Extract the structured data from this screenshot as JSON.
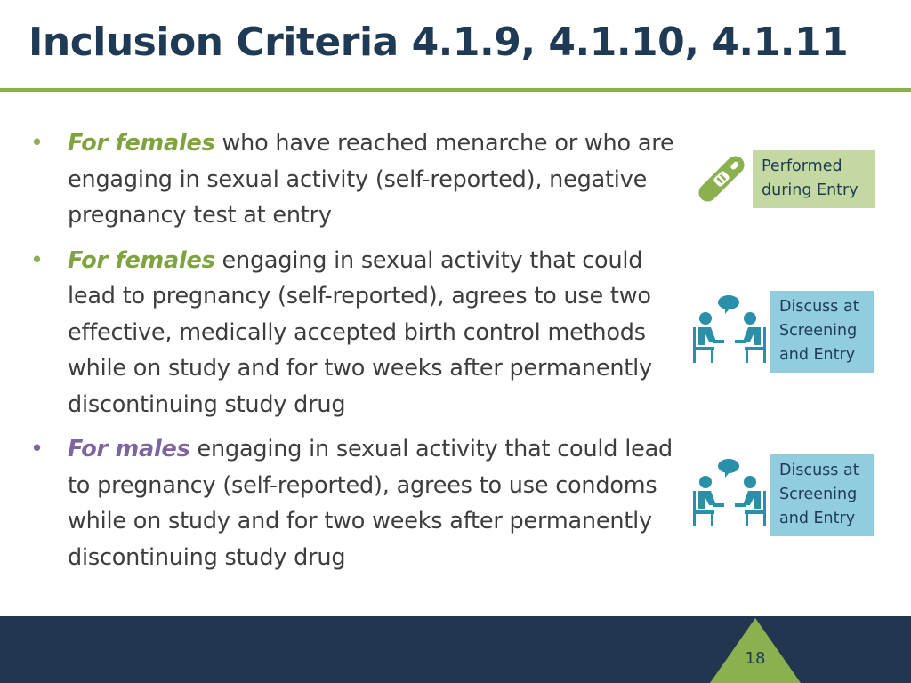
{
  "slide": {
    "title": "Inclusion Criteria 4.1.9, 4.1.10, 4.1.11",
    "bullets": [
      {
        "lead": "For females",
        "text": " who have reached menarche or who are engaging in sexual activity (self-reported), negative pregnancy test at entry"
      },
      {
        "lead": "For females",
        "text": " engaging in sexual activity that could lead to pregnancy (self-reported), agrees to use two effective, medically accepted birth control methods while on study and for two weeks after permanently discontinuing study drug"
      },
      {
        "lead": "For males",
        "text": " engaging in sexual activity that could lead to pregnancy (self-reported), agrees to use condoms while on study and for two weeks after permanently discontinuing study drug"
      }
    ],
    "labels": [
      {
        "text": "Performed\nduring Entry",
        "icon": "pregnancy-test-icon"
      },
      {
        "text": "Discuss at\nScreening\nand Entry",
        "icon": "discussion-icon"
      },
      {
        "text": "Discuss at\nScreening\nand Entry",
        "icon": "discussion-icon"
      }
    ],
    "page_number": "18"
  },
  "colors": {
    "title": "#1f3a55",
    "accent_green": "#8ab04f",
    "accent_purple": "#7e64a0",
    "label_green_bg": "#c4d8a2",
    "label_blue_bg": "#92cddf",
    "footer": "#23364f",
    "icon_teal": "#2a8fa8"
  }
}
